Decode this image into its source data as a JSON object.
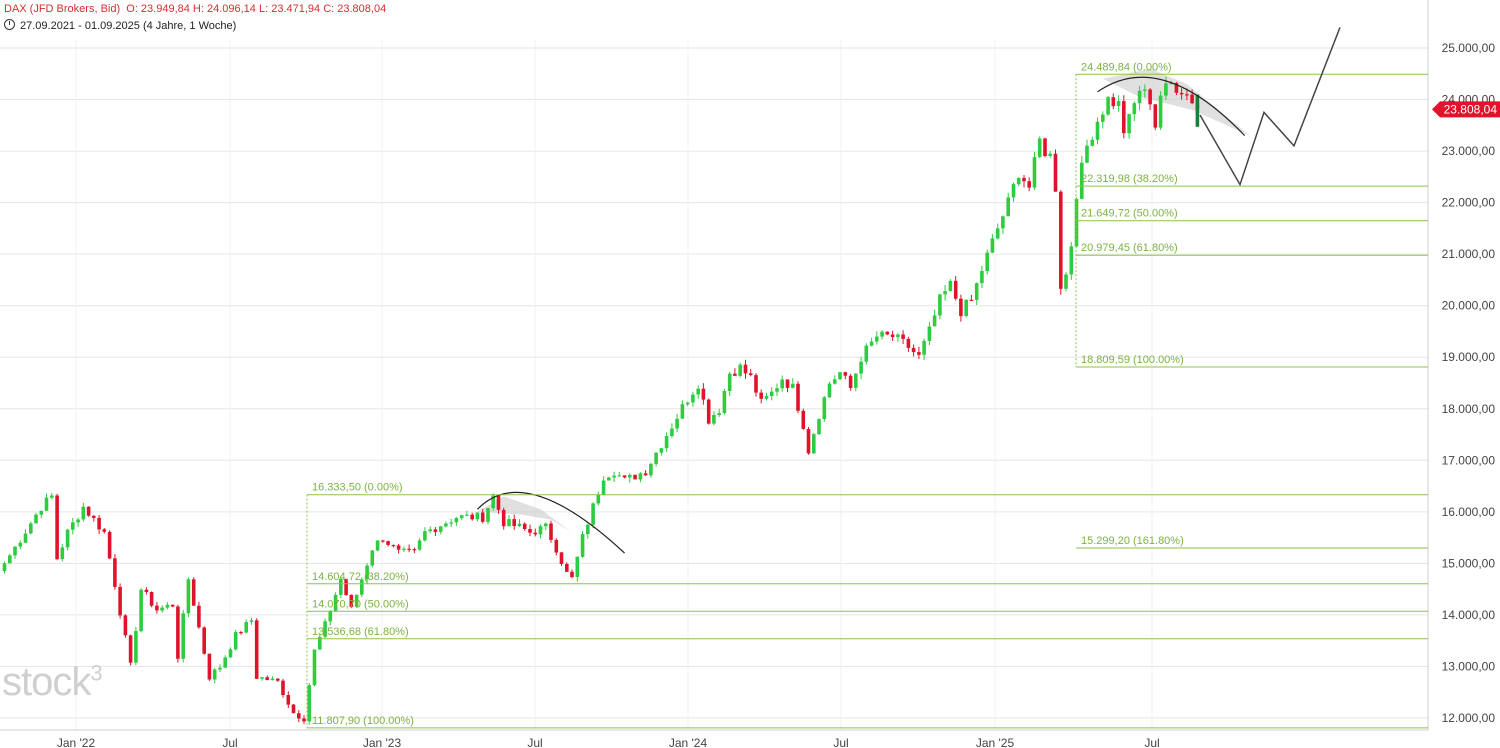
{
  "header": {
    "instrument": "DAX (JFD Brokers, Bid)",
    "ohlc": "O: 23.949,84  H: 24.096,14  L: 23.471,94  C: 23.808,04",
    "range": "27.09.2021 - 01.09.2025  (4 Jahre, 1 Woche)"
  },
  "watermark": "stock",
  "watermark_sup": "3",
  "colors": {
    "up": "#2ecc40",
    "down": "#e0132b",
    "fib": "#8bc34a",
    "fib_text": "#7cb342",
    "price_tag": "#e0132b",
    "grid": "#e6e6e6"
  },
  "chart_data": {
    "type": "candlestick",
    "title": "",
    "x_ticks": [
      "Jan '22",
      "Jul",
      "Jan '23",
      "Jul",
      "Jan '24",
      "Jul",
      "Jan '25",
      "Jul"
    ],
    "y_ticks": [
      "25.000,00",
      "24.000,00",
      "23.000,00",
      "22.000,00",
      "21.000,00",
      "20.000,00",
      "19.000,00",
      "18.000,00",
      "17.000,00",
      "16.000,00",
      "15.000,00",
      "14.000,00",
      "13.000,00",
      "12.000,00"
    ],
    "y_range": [
      11750,
      25850
    ],
    "last_price": "23.808,04",
    "last_value": 23808.04,
    "anchors": [
      [
        0,
        15000
      ],
      [
        7,
        16100
      ],
      [
        9,
        16300
      ],
      [
        10,
        15100
      ],
      [
        12,
        15600
      ],
      [
        15,
        16100
      ],
      [
        19,
        15600
      ],
      [
        21,
        14600
      ],
      [
        24,
        13000
      ],
      [
        26,
        14500
      ],
      [
        29,
        14100
      ],
      [
        32,
        14200
      ],
      [
        33,
        13200
      ],
      [
        35,
        14700
      ],
      [
        39,
        12800
      ],
      [
        41,
        13000
      ],
      [
        44,
        13600
      ],
      [
        47,
        13900
      ],
      [
        48,
        12800
      ],
      [
        52,
        12700
      ],
      [
        55,
        12100
      ],
      [
        57,
        12000
      ],
      [
        59,
        13300
      ],
      [
        61,
        13800
      ],
      [
        64,
        14700
      ],
      [
        66,
        14100
      ],
      [
        68,
        14700
      ],
      [
        70,
        15300
      ],
      [
        72,
        15500
      ],
      [
        75,
        15200
      ],
      [
        78,
        15200
      ],
      [
        80,
        15600
      ],
      [
        84,
        15800
      ],
      [
        86,
        15900
      ],
      [
        89,
        15900
      ],
      [
        91,
        15900
      ],
      [
        93,
        16300
      ],
      [
        95,
        15800
      ],
      [
        98,
        15700
      ],
      [
        100,
        15600
      ],
      [
        103,
        15700
      ],
      [
        105,
        15300
      ],
      [
        107,
        14800
      ],
      [
        108,
        14700
      ],
      [
        110,
        15500
      ],
      [
        114,
        16700
      ],
      [
        116,
        16800
      ],
      [
        118,
        16600
      ],
      [
        122,
        16800
      ],
      [
        126,
        17500
      ],
      [
        130,
        18200
      ],
      [
        132,
        18500
      ],
      [
        134,
        17800
      ],
      [
        136,
        18000
      ],
      [
        138,
        18700
      ],
      [
        140,
        18800
      ],
      [
        142,
        18600
      ],
      [
        144,
        18100
      ],
      [
        146,
        18300
      ],
      [
        148,
        18600
      ],
      [
        150,
        18400
      ],
      [
        152,
        17700
      ],
      [
        153,
        17200
      ],
      [
        155,
        17900
      ],
      [
        157,
        18500
      ],
      [
        159,
        18700
      ],
      [
        161,
        18400
      ],
      [
        163,
        19000
      ],
      [
        166,
        19400
      ],
      [
        169,
        19400
      ],
      [
        172,
        19200
      ],
      [
        174,
        19000
      ],
      [
        176,
        19500
      ],
      [
        178,
        20100
      ],
      [
        180,
        20400
      ],
      [
        182,
        19900
      ],
      [
        184,
        20100
      ],
      [
        186,
        20700
      ],
      [
        189,
        21500
      ],
      [
        191,
        22000
      ],
      [
        193,
        22600
      ],
      [
        195,
        22300
      ],
      [
        197,
        23200
      ],
      [
        198,
        23000
      ],
      [
        199,
        22900
      ],
      [
        200,
        22300
      ],
      [
        201,
        20400
      ],
      [
        202,
        20600
      ],
      [
        203,
        21200
      ],
      [
        204,
        22200
      ],
      [
        206,
        23100
      ],
      [
        208,
        23600
      ],
      [
        210,
        24000
      ],
      [
        212,
        23900
      ],
      [
        213,
        23400
      ],
      [
        214,
        23600
      ],
      [
        216,
        24200
      ],
      [
        218,
        24000
      ],
      [
        219,
        23500
      ],
      [
        220,
        24100
      ],
      [
        222,
        24300
      ],
      [
        224,
        24200
      ],
      [
        226,
        24000
      ],
      [
        227,
        23900
      ]
    ],
    "fib_levels": [
      {
        "label": "16.333,50 (0.00%)",
        "value": 16333.5,
        "set": 1
      },
      {
        "label": "14.604,72 (38.20%)",
        "value": 14604.72,
        "set": 1
      },
      {
        "label": "14.070,70 (50.00%)",
        "value": 14070.7,
        "set": 1
      },
      {
        "label": "13.536,68 (61.80%)",
        "value": 13536.68,
        "set": 1
      },
      {
        "label": "11.807,90 (100.00%)",
        "value": 11807.9,
        "set": 1
      },
      {
        "label": "24.489,84 (0.00%)",
        "value": 24489.84,
        "set": 2
      },
      {
        "label": "22.319,98 (38.20%)",
        "value": 22319.98,
        "set": 2
      },
      {
        "label": "21.649,72 (50.00%)",
        "value": 21649.72,
        "set": 2
      },
      {
        "label": "20.979,45 (61.80%)",
        "value": 20979.45,
        "set": 2
      },
      {
        "label": "18.809,59 (100.00%)",
        "value": 18809.59,
        "set": 2
      },
      {
        "label": "15.299,20 (161.80%)",
        "value": 15299.2,
        "set": 2
      }
    ],
    "projection": [
      [
        23700,
        0
      ],
      [
        22350,
        40
      ],
      [
        23750,
        64
      ],
      [
        23100,
        94
      ],
      [
        25400,
        140
      ]
    ]
  }
}
